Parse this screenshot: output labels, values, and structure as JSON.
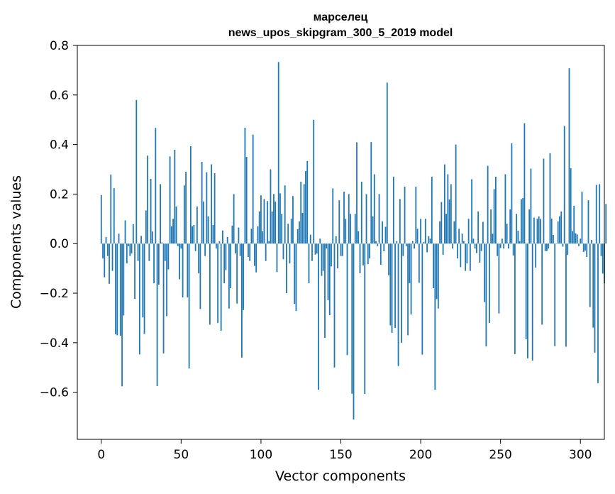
{
  "chart_data": {
    "type": "bar",
    "title_line1": "марселец",
    "title_line2": "news_upos_skipgram_300_5_2019 model",
    "xlabel": "Vector components",
    "ylabel": "Components values",
    "xlim": [
      -15,
      315
    ],
    "ylim": [
      -0.79,
      0.8
    ],
    "xticks": [
      0,
      50,
      100,
      150,
      200,
      250,
      300
    ],
    "yticks": [
      0.8,
      0.6,
      0.4,
      0.2,
      0.0,
      -0.2,
      -0.4,
      -0.6
    ],
    "xtick_labels": [
      "0",
      "50",
      "100",
      "150",
      "200",
      "250",
      "300"
    ],
    "ytick_labels": [
      "0.8",
      "0.6",
      "0.4",
      "0.2",
      "0.0",
      "−0.2",
      "−0.4",
      "−0.6"
    ],
    "bar_color": "#1f77b4",
    "values": [
      0.196,
      -0.06,
      -0.136,
      0.027,
      -0.05,
      -0.162,
      0.279,
      -0.11,
      0.224,
      -0.366,
      -0.37,
      0.04,
      -0.372,
      -0.576,
      -0.29,
      0.094,
      -0.08,
      -0.01,
      -0.05,
      -0.04,
      0.078,
      -0.223,
      0.58,
      -0.07,
      -0.447,
      0.031,
      -0.298,
      -0.365,
      0.134,
      0.355,
      -0.07,
      0.262,
      0.049,
      -0.16,
      0.467,
      -0.575,
      -0.166,
      0.24,
      0.005,
      -0.443,
      -0.07,
      -0.293,
      -0.104,
      0.352,
      0.07,
      0.1,
      0.379,
      0.15,
      -0.01,
      -0.144,
      -0.02,
      -0.217,
      0.235,
      0.29,
      -0.217,
      -0.504,
      0.393,
      0.07,
      0.075,
      -0.03,
      0.15,
      -0.12,
      -0.264,
      0.33,
      0.17,
      -0.05,
      0.288,
      0.11,
      -0.327,
      0.32,
      0.075,
      0.284,
      -0.02,
      -0.32,
      0.01,
      -0.352,
      0.053,
      -0.16,
      -0.107,
      0.027,
      -0.262,
      -0.18,
      0.073,
      0.2,
      -0.04,
      -0.242,
      0.065,
      -0.05,
      -0.46,
      -0.268,
      0.468,
      0.35,
      -0.054,
      -0.07,
      0.06,
      0.44,
      -0.09,
      -0.116,
      0.07,
      0.13,
      0.195,
      0.05,
      0.18,
      -0.07,
      0.172,
      0.01,
      0.3,
      0.13,
      0.2,
      0.17,
      -0.115,
      0.733,
      0.203,
      0.12,
      -0.063,
      0.235,
      -0.2,
      0.08,
      -0.08,
      0.1,
      0.192,
      -0.243,
      -0.272,
      0.058,
      0.09,
      0.25,
      0.124,
      0.24,
      0.293,
      0.333,
      -0.16,
      0.036,
      -0.07,
      0.5,
      -0.044,
      -0.04,
      -0.59,
      0.02,
      -0.13,
      -0.11,
      -0.38,
      -0.02,
      -0.228,
      -0.289,
      -0.092,
      0.223,
      -0.5,
      0.03,
      -0.1,
      0.175,
      -0.05,
      -0.05,
      0.21,
      0.1,
      -0.45,
      0.2,
      0.12,
      -0.606,
      -0.71,
      0.12,
      0.409,
      0.05,
      -0.12,
      0.25,
      -0.088,
      -0.607,
      0.2,
      -0.083,
      -0.06,
      0.41,
      0.11,
      0.28,
      0.01,
      -0.01,
      0.2,
      -0.085,
      0.09,
      -0.031,
      0.068,
      0.65,
      -0.128,
      -0.33,
      -0.36,
      0.27,
      -0.34,
      0.01,
      -0.494,
      0.18,
      -0.4,
      -0.05,
      0.23,
      -0.01,
      -0.37,
      -0.16,
      -0.286,
      0.01,
      -0.02,
      0.23,
      0.06,
      -0.158,
      0.1,
      -0.448,
      0.007,
      0.1,
      -0.035,
      0.03,
      0.02,
      0.27,
      -0.18,
      -0.59,
      -0.224,
      -0.262,
      0.09,
      0.168,
      -0.045,
      0.32,
      0.12,
      0.28,
      0.178,
      0.24,
      -0.02,
      0.09,
      0.4,
      -0.06,
      0.06,
      -0.095,
      0.04,
      0.01,
      -0.11,
      -0.08,
      0.1,
      -0.11,
      0.26,
      0.02,
      -0.02,
      -0.038,
      0.13,
      -0.077,
      -0.03,
      0.088,
      -0.236,
      -0.415,
      0.314,
      -0.32,
      0.138,
      0.04,
      0.22,
      0.27,
      -0.05,
      -0.282,
      -0.018,
      0.02,
      -0.02,
      0.28,
      0.08,
      -0.02,
      0.138,
      0.405,
      -0.048,
      -0.446,
      0.12,
      0.052,
      0.01,
      0.179,
      0.184,
      0.486,
      -0.386,
      -0.463,
      0.138,
      0.303,
      -0.472,
      0.105,
      -0.097,
      0.1,
      0.11,
      0.1,
      -0.327,
      0.343,
      -0.03,
      -0.03,
      -0.02,
      0.365,
      0.101,
      0.035,
      -0.414,
      0.001,
      0.09,
      0.11,
      0.13,
      -0.012,
      0.475,
      -0.416,
      -0.046,
      0.708,
      0.304,
      0.051,
      0.153,
      0.042,
      0.037,
      -0.01,
      0.02,
      0.21,
      -0.034,
      -0.028,
      -0.054,
      0.175,
      -0.256,
      0.015,
      -0.339,
      -0.44,
      0.237,
      -0.563,
      0.24,
      -0.05,
      -0.121,
      -0.16,
      0.16
    ]
  }
}
